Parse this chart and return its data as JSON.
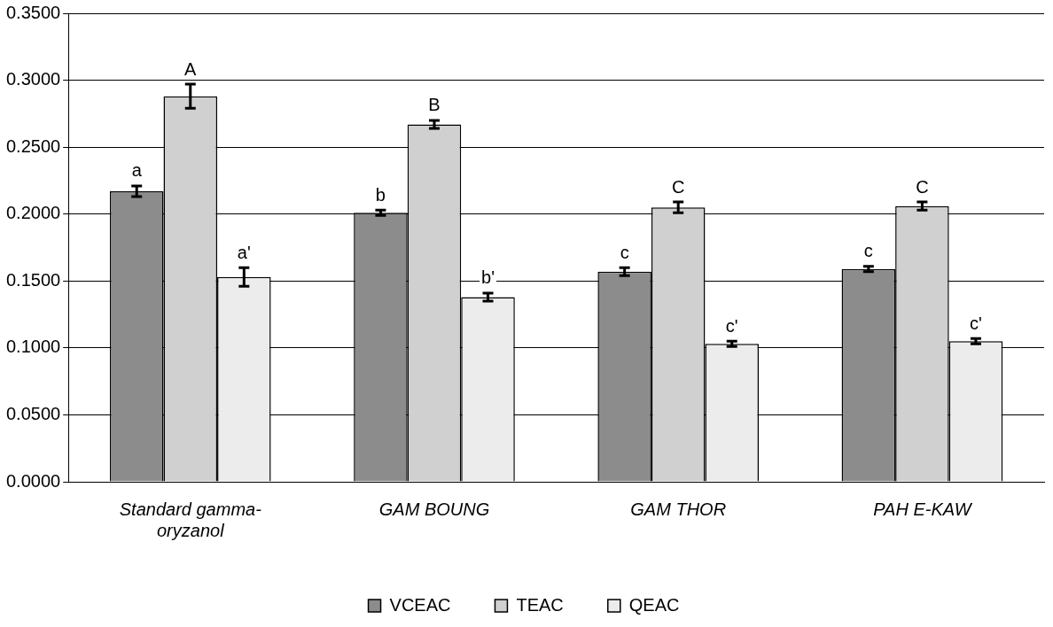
{
  "chart_data": {
    "type": "bar",
    "categories": [
      "Standard gamma-oryzanol",
      "GAM BOUNG",
      "GAM THOR",
      "PAH E-KAW"
    ],
    "series": [
      {
        "name": "VCEAC",
        "color": "#8c8c8c",
        "values": [
          0.217,
          0.201,
          0.157,
          0.159
        ],
        "errors": [
          0.004,
          0.002,
          0.003,
          0.002
        ],
        "value_labels": [
          "a",
          "b",
          "c",
          "c"
        ]
      },
      {
        "name": "TEAC",
        "color": "#d0d0d0",
        "values": [
          0.288,
          0.267,
          0.205,
          0.206
        ],
        "errors": [
          0.009,
          0.003,
          0.004,
          0.003
        ],
        "value_labels": [
          "A",
          "B",
          "C",
          "C"
        ]
      },
      {
        "name": "QEAC",
        "color": "#ececec",
        "values": [
          0.153,
          0.138,
          0.103,
          0.105
        ],
        "errors": [
          0.007,
          0.003,
          0.002,
          0.002
        ],
        "value_labels": [
          "a'",
          "b'",
          "c'",
          "c'"
        ]
      }
    ],
    "ylim": [
      0,
      0.35
    ],
    "yticks": [
      {
        "value": 0,
        "label": "0.0000"
      },
      {
        "value": 0.05,
        "label": "0.0500"
      },
      {
        "value": 0.1,
        "label": "0.1000"
      },
      {
        "value": 0.15,
        "label": "0.1500"
      },
      {
        "value": 0.2,
        "label": "0.2000"
      },
      {
        "value": 0.25,
        "label": "0.2500"
      },
      {
        "value": 0.3,
        "label": "0.3000"
      },
      {
        "value": 0.35,
        "label": "0.3500"
      }
    ],
    "grid": "y",
    "legend": "bottom"
  }
}
